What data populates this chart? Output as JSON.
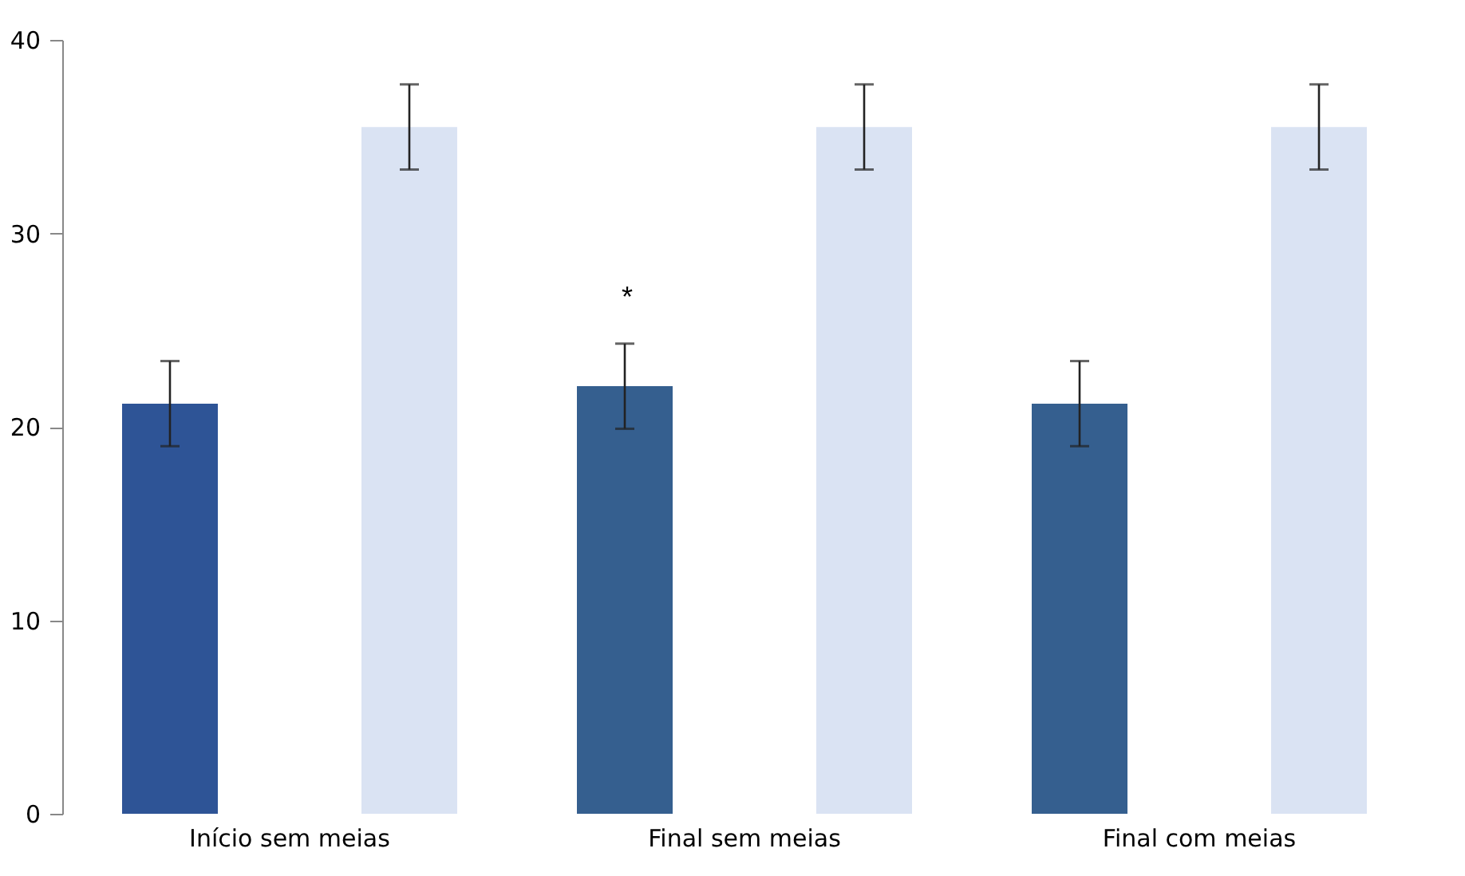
{
  "chart_data": {
    "type": "bar",
    "categories": [
      "Início sem meias",
      "Final sem meias",
      "Final com meias"
    ],
    "series": [
      {
        "colors": [
          "#2e5496",
          "#355f8f",
          "#355f8f"
        ],
        "values": [
          21.2,
          22.1,
          21.2
        ],
        "errors": [
          2.2,
          2.2,
          2.2
        ]
      },
      {
        "color": "#dae3f3",
        "values": [
          35.5,
          35.5,
          35.5
        ],
        "errors": [
          2.2,
          2.2,
          2.2
        ]
      }
    ],
    "ylim": [
      0,
      40
    ],
    "yticks": [
      0,
      10,
      20,
      30,
      40
    ],
    "grid": false,
    "annotations": [
      "*"
    ]
  }
}
